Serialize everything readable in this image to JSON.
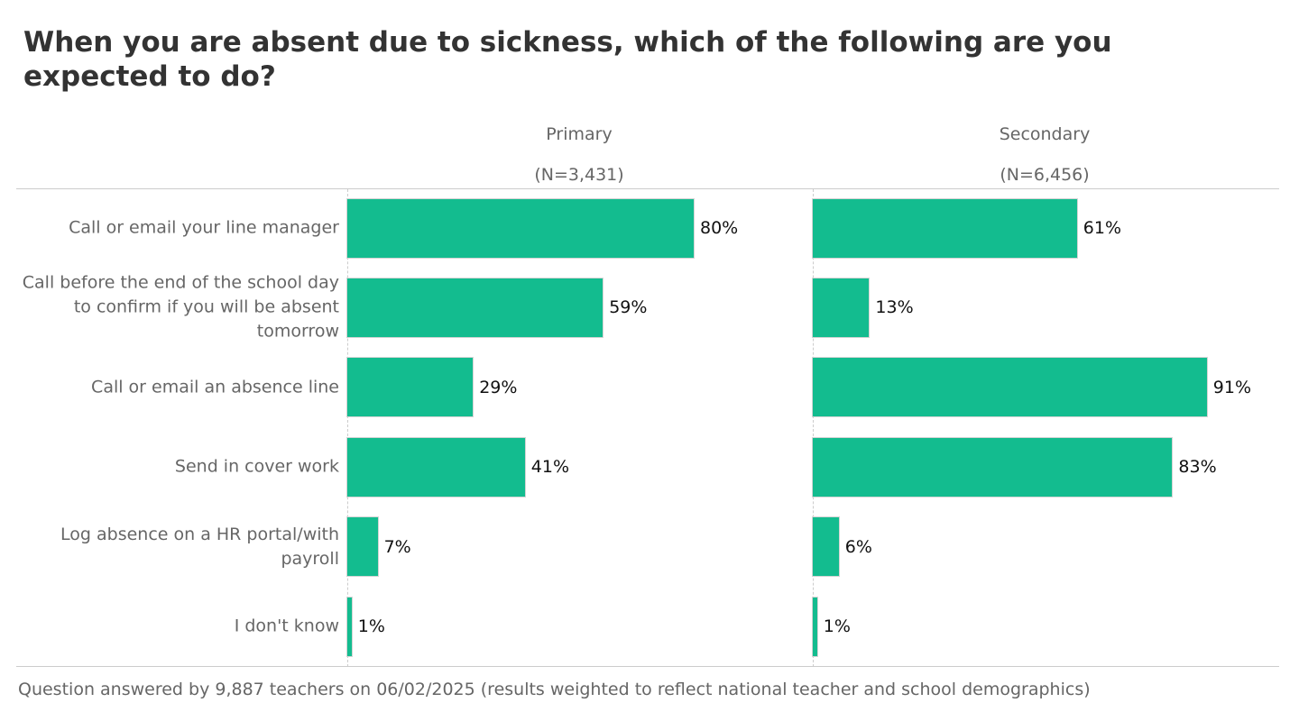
{
  "chart_data": {
    "type": "bar",
    "title": "When you are absent due to sickness, which of the following are you expected to do?",
    "categories": [
      "Call or email your line manager",
      "Call before the end of the school day to confirm if you will be absent tomorrow",
      "Call or email an absence line",
      "Send in cover work",
      "Log absence on a HR portal/with payroll",
      "I don't know"
    ],
    "series": [
      {
        "name": "Primary",
        "n": "(N=3,431)",
        "values": [
          80,
          59,
          29,
          41,
          7,
          1
        ]
      },
      {
        "name": "Secondary",
        "n": "(N=6,456)",
        "values": [
          61,
          13,
          91,
          83,
          6,
          1
        ]
      }
    ],
    "unit": "%",
    "xlim": [
      0,
      100
    ],
    "color": "#13bc8f",
    "footer": "Question answered by 9,887 teachers on 06/02/2025 (results weighted to reflect national teacher and school demographics)"
  }
}
